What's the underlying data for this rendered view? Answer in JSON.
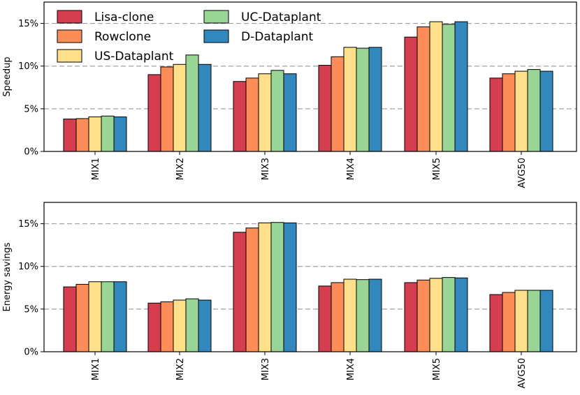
{
  "legend": [
    {
      "name": "Lisa-clone",
      "color": "#d53e4f"
    },
    {
      "name": "Rowclone",
      "color": "#fc8d59"
    },
    {
      "name": "US-Dataplant",
      "color": "#fee08b"
    },
    {
      "name": "UC-Dataplant",
      "color": "#99d594"
    },
    {
      "name": "D-Dataplant",
      "color": "#3288bd"
    }
  ],
  "chart_data": [
    {
      "type": "bar",
      "title": "",
      "xlabel": "",
      "ylabel": "Speedup",
      "ylim": [
        0,
        17.5
      ],
      "yticks": [
        0,
        5,
        10,
        15
      ],
      "ytick_labels": [
        "0%",
        "5%",
        "10%",
        "15%"
      ],
      "grid": "horizontal dashed",
      "categories": [
        "MIX1",
        "MIX2",
        "MIX3",
        "MIX4",
        "MIX5",
        "AVG50"
      ],
      "series": [
        {
          "name": "Lisa-clone",
          "values": [
            3.8,
            9.0,
            8.2,
            10.1,
            13.4,
            8.6
          ]
        },
        {
          "name": "Rowclone",
          "values": [
            3.85,
            9.9,
            8.6,
            11.1,
            14.6,
            9.1
          ]
        },
        {
          "name": "US-Dataplant",
          "values": [
            4.05,
            10.2,
            9.1,
            12.2,
            15.2,
            9.4
          ]
        },
        {
          "name": "UC-Dataplant",
          "values": [
            4.15,
            11.3,
            9.5,
            12.1,
            14.9,
            9.6
          ]
        },
        {
          "name": "D-Dataplant",
          "values": [
            4.05,
            10.2,
            9.1,
            12.2,
            15.2,
            9.4
          ]
        }
      ]
    },
    {
      "type": "bar",
      "title": "",
      "xlabel": "",
      "ylabel": "Energy savings",
      "ylim": [
        0,
        17.5
      ],
      "yticks": [
        0,
        5,
        10,
        15
      ],
      "ytick_labels": [
        "0%",
        "5%",
        "10%",
        "15%"
      ],
      "grid": "horizontal dashed",
      "categories": [
        "MIX1",
        "MIX2",
        "MIX3",
        "MIX4",
        "MIX5",
        "AVG50"
      ],
      "series": [
        {
          "name": "Lisa-clone",
          "values": [
            7.6,
            5.7,
            14.0,
            7.7,
            8.1,
            6.7
          ]
        },
        {
          "name": "Rowclone",
          "values": [
            7.9,
            5.85,
            14.5,
            8.1,
            8.4,
            6.95
          ]
        },
        {
          "name": "US-Dataplant",
          "values": [
            8.2,
            6.05,
            15.1,
            8.5,
            8.6,
            7.2
          ]
        },
        {
          "name": "UC-Dataplant",
          "values": [
            8.2,
            6.2,
            15.15,
            8.45,
            8.7,
            7.2
          ]
        },
        {
          "name": "D-Dataplant",
          "values": [
            8.2,
            6.05,
            15.1,
            8.5,
            8.65,
            7.2
          ]
        }
      ]
    }
  ]
}
